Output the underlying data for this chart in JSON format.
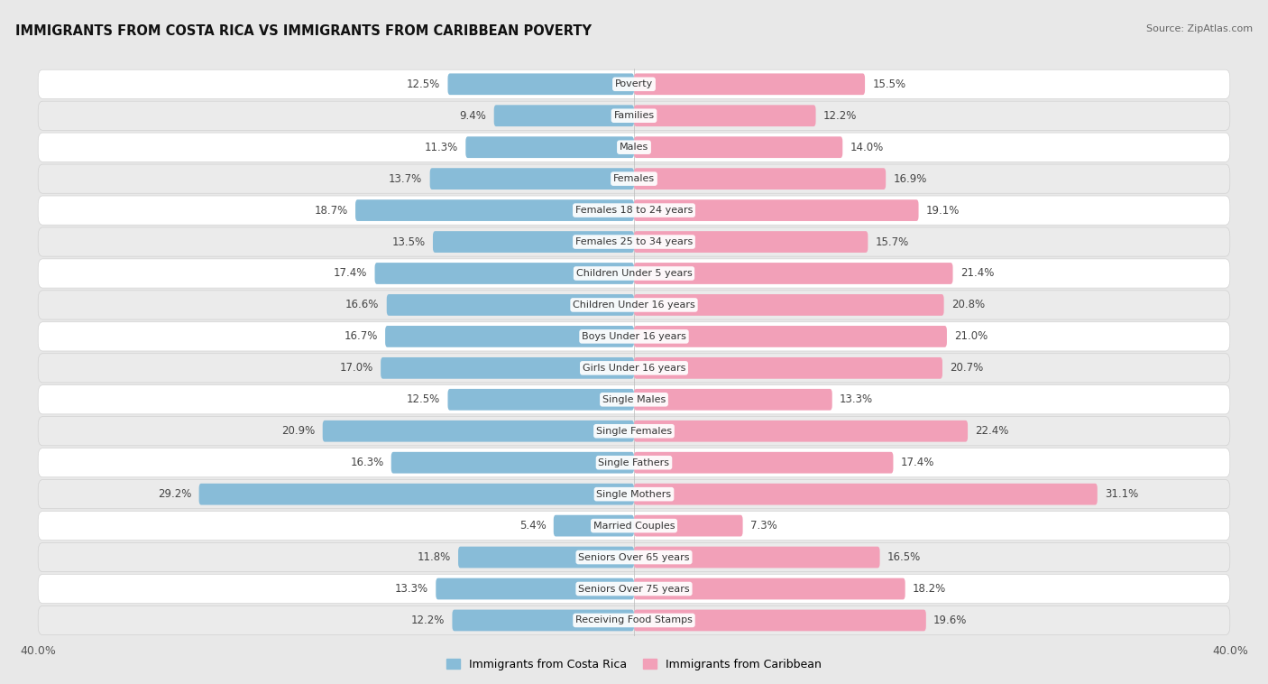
{
  "title": "IMMIGRANTS FROM COSTA RICA VS IMMIGRANTS FROM CARIBBEAN POVERTY",
  "source": "Source: ZipAtlas.com",
  "categories": [
    "Poverty",
    "Families",
    "Males",
    "Females",
    "Females 18 to 24 years",
    "Females 25 to 34 years",
    "Children Under 5 years",
    "Children Under 16 years",
    "Boys Under 16 years",
    "Girls Under 16 years",
    "Single Males",
    "Single Females",
    "Single Fathers",
    "Single Mothers",
    "Married Couples",
    "Seniors Over 65 years",
    "Seniors Over 75 years",
    "Receiving Food Stamps"
  ],
  "left_values": [
    12.5,
    9.4,
    11.3,
    13.7,
    18.7,
    13.5,
    17.4,
    16.6,
    16.7,
    17.0,
    12.5,
    20.9,
    16.3,
    29.2,
    5.4,
    11.8,
    13.3,
    12.2
  ],
  "right_values": [
    15.5,
    12.2,
    14.0,
    16.9,
    19.1,
    15.7,
    21.4,
    20.8,
    21.0,
    20.7,
    13.3,
    22.4,
    17.4,
    31.1,
    7.3,
    16.5,
    18.2,
    19.6
  ],
  "left_color": "#88bcd8",
  "right_color": "#f2a0b8",
  "left_label": "Immigrants from Costa Rica",
  "right_label": "Immigrants from Caribbean",
  "axis_max": 40.0,
  "fig_bg": "#e8e8e8",
  "row_bg_white": "#ffffff",
  "row_bg_gray": "#ebebeb"
}
